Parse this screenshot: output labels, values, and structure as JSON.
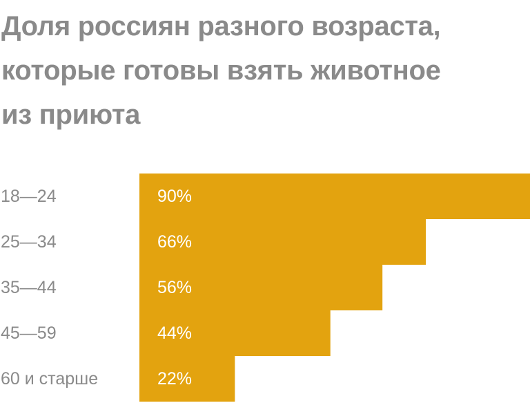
{
  "chart_data": {
    "type": "bar",
    "orientation": "horizontal",
    "title_lines": [
      "Доля россиян разного возраста,",
      "которые готовы взять животное",
      "из приюта"
    ],
    "categories": [
      "18—24",
      "25—34",
      "35—44",
      "45—59",
      "60 и старше"
    ],
    "values": [
      90,
      66,
      56,
      44,
      22
    ],
    "value_labels": [
      "90%",
      "66%",
      "56%",
      "44%",
      "22%"
    ],
    "unit": "%",
    "bar_color": "#E3A30F",
    "label_color": "#8a8a8a",
    "value_label_color": "#ffffff",
    "grid": false,
    "legend": "none"
  }
}
